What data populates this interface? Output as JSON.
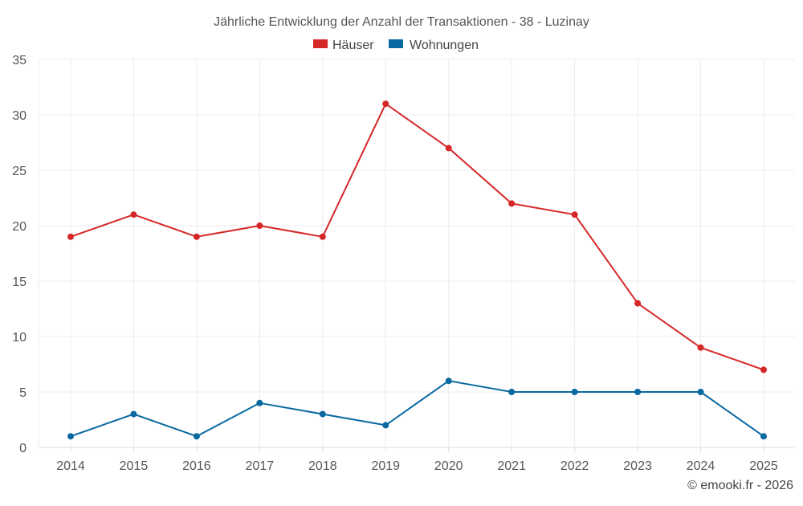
{
  "chart_data": {
    "type": "line",
    "title": "Jährliche Entwicklung der Anzahl der Transaktionen - 38 - Luzinay",
    "categories": [
      "2014",
      "2015",
      "2016",
      "2017",
      "2018",
      "2019",
      "2020",
      "2021",
      "2022",
      "2023",
      "2024",
      "2025"
    ],
    "ylim": [
      0,
      35
    ],
    "yticks": [
      0,
      5,
      10,
      15,
      20,
      25,
      30,
      35
    ],
    "grid": true,
    "legend_position": "top-center",
    "series": [
      {
        "name": "Häuser",
        "color": "#d62728",
        "values": [
          19,
          21,
          19,
          20,
          19,
          31,
          27,
          22,
          21,
          13,
          9,
          7
        ]
      },
      {
        "name": "Wohnungen",
        "color": "#0868a0",
        "values": [
          1,
          3,
          1,
          4,
          3,
          2,
          6,
          5,
          5,
          5,
          5,
          1
        ]
      }
    ]
  },
  "footer": {
    "copyright": "© emooki.fr - 2026"
  }
}
